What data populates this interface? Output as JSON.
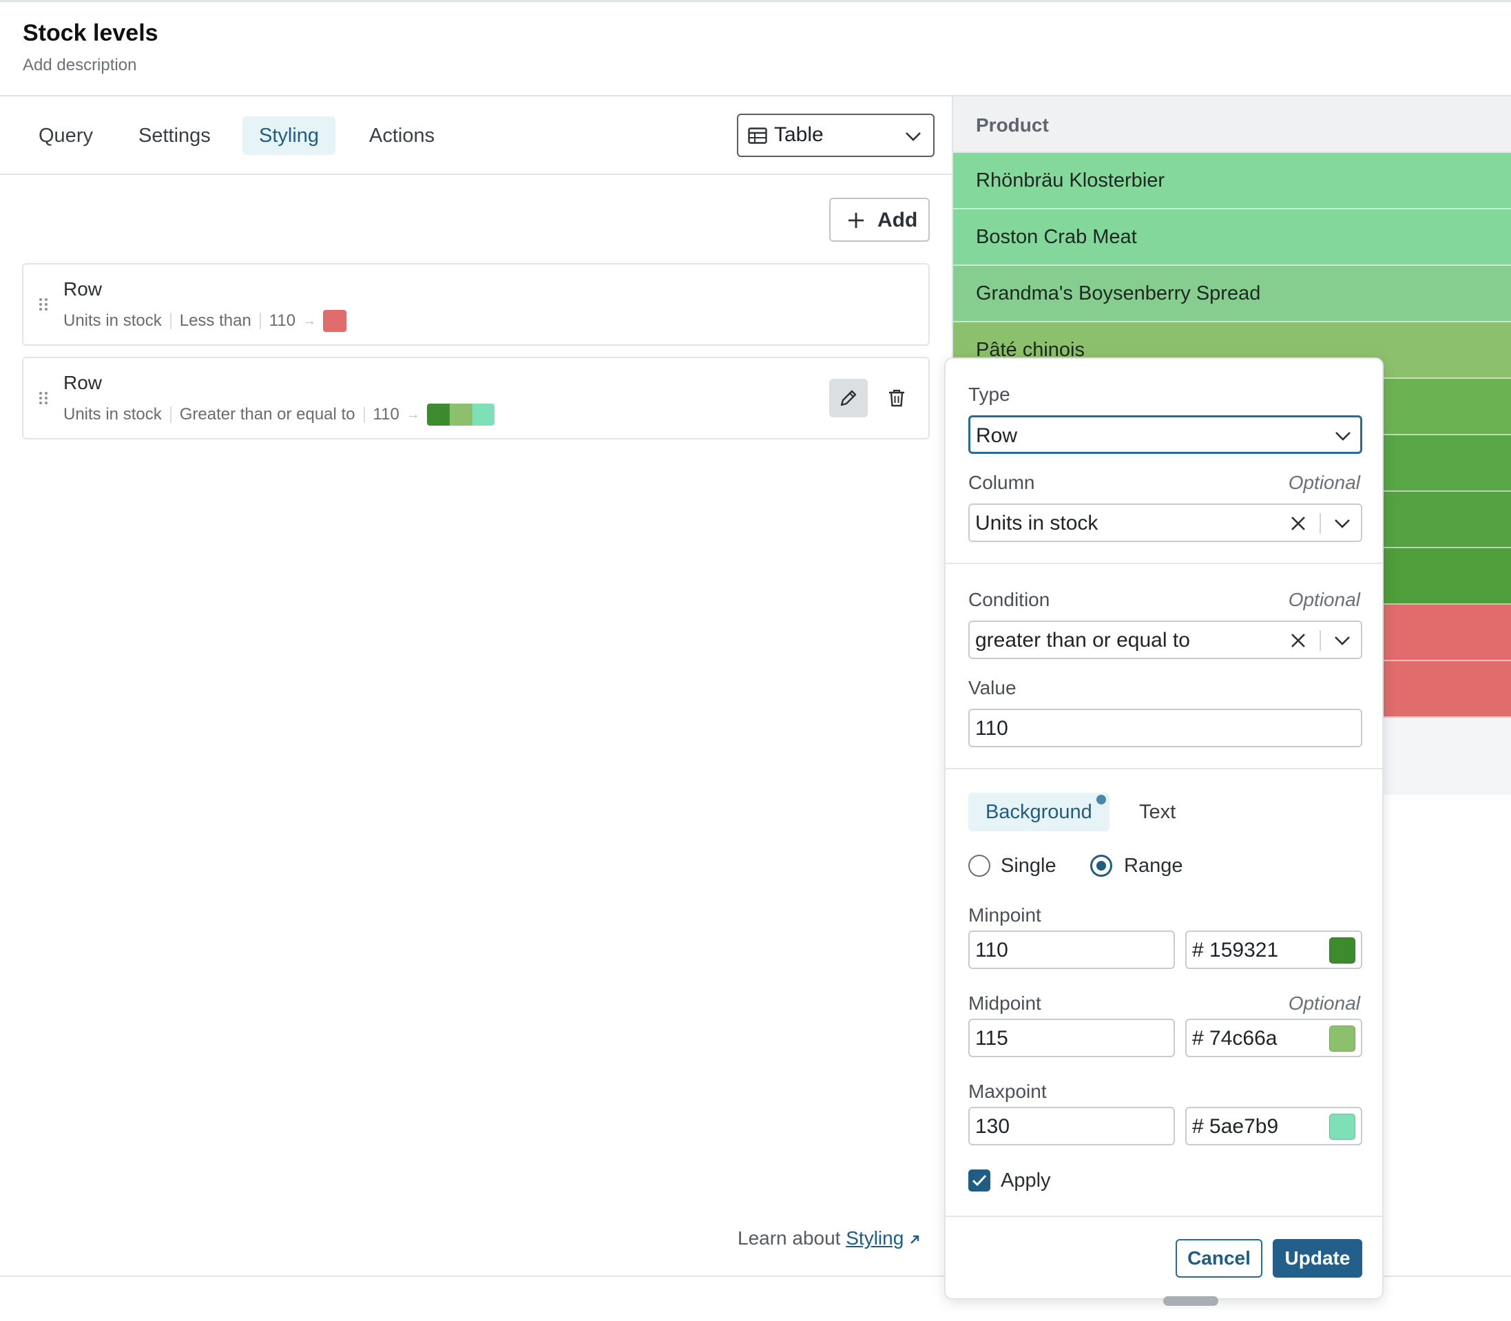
{
  "header": {
    "title": "Stock levels",
    "description": "Add description"
  },
  "tabs": [
    {
      "label": "Query",
      "active": false
    },
    {
      "label": "Settings",
      "active": false
    },
    {
      "label": "Styling",
      "active": true
    },
    {
      "label": "Actions",
      "active": false
    }
  ],
  "visualization_select": {
    "value": "Table",
    "icon": "table-icon"
  },
  "add_button": {
    "label": "Add"
  },
  "rules": [
    {
      "title": "Row",
      "column": "Units in stock",
      "condition": "Less than",
      "value": "110",
      "colors": [
        "#e06c6c"
      ]
    },
    {
      "title": "Row",
      "column": "Units in stock",
      "condition": "Greater than or equal to",
      "value": "110",
      "colors": [
        "#3d8b2f",
        "#8dc06c",
        "#7fe0b8"
      ]
    }
  ],
  "learn": {
    "prefix": "Learn about",
    "link": "Styling",
    "icon": "external-link-icon"
  },
  "preview": {
    "column_header": "Product",
    "rows": [
      {
        "label": "Rhönbräu Klosterbier",
        "color": "#84d89c"
      },
      {
        "label": "Boston Crab Meat",
        "color": "#84d79a"
      },
      {
        "label": "Grandma's Boysenberry Spread",
        "color": "#86ce8f"
      },
      {
        "label": "Pâté chinois",
        "color": "#8dc06c"
      },
      {
        "label": "",
        "color": "#6bb253"
      },
      {
        "label": "",
        "color": "#58a646"
      },
      {
        "label": "",
        "color": "#54a242"
      },
      {
        "label": "",
        "color": "#4e9e3c"
      },
      {
        "label": "",
        "color": "#e06c6c"
      },
      {
        "label": "",
        "color": "#e06c6c"
      }
    ]
  },
  "editor": {
    "type_label": "Type",
    "type_value": "Row",
    "column_label": "Column",
    "column_optional": "Optional",
    "column_value": "Units in stock",
    "condition_label": "Condition",
    "condition_optional": "Optional",
    "condition_value": "greater than or equal to",
    "value_label": "Value",
    "value_value": "110",
    "color_tabs": [
      {
        "label": "Background",
        "active": true
      },
      {
        "label": "Text",
        "active": false
      }
    ],
    "mode_options": [
      {
        "label": "Single",
        "selected": false
      },
      {
        "label": "Range",
        "selected": true
      }
    ],
    "minpoint": {
      "label": "Minpoint",
      "value": "110",
      "hex": "# 159321",
      "swatch": "#3d8b2f"
    },
    "midpoint": {
      "label": "Midpoint",
      "optional": "Optional",
      "value": "115",
      "hex": "# 74c66a",
      "swatch": "#8dc06c"
    },
    "maxpoint": {
      "label": "Maxpoint",
      "value": "130",
      "hex": "# 5ae7b9",
      "swatch": "#7fe0b8"
    },
    "apply_label": "Apply",
    "apply_checked": true,
    "cancel_label": "Cancel",
    "update_label": "Update"
  },
  "colors": {
    "accent": "#1f5d84",
    "accent_bg": "#e6f3f7"
  }
}
